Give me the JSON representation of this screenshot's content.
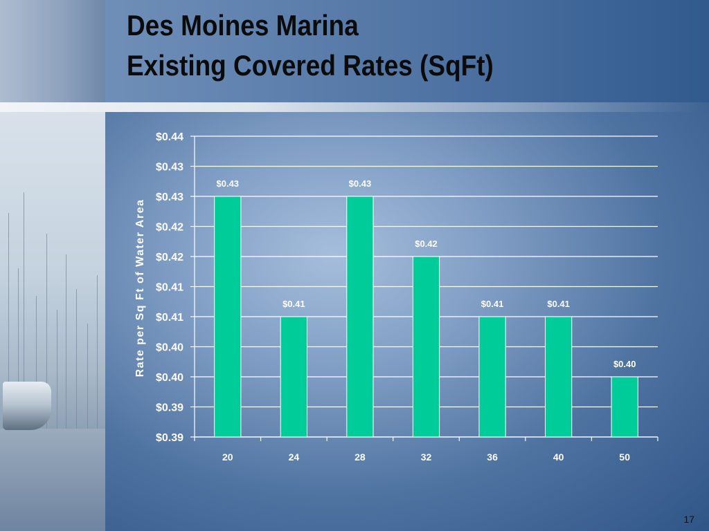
{
  "slide": {
    "title_line1": "Des Moines Marina",
    "title_line2": "Existing Covered Rates (SqFt)",
    "slide_number": "17"
  },
  "chart_data": {
    "type": "bar",
    "categories": [
      "20",
      "24",
      "28",
      "32",
      "36",
      "40",
      "50"
    ],
    "values": [
      0.43,
      0.41,
      0.43,
      0.42,
      0.41,
      0.41,
      0.4
    ],
    "data_labels": [
      "$0.43",
      "$0.41",
      "$0.43",
      "$0.42",
      "$0.41",
      "$0.41",
      "$0.40"
    ],
    "ylabel": "Rate per Sq Ft of Water Area",
    "xlabel": "",
    "ylim": [
      0.39,
      0.44
    ],
    "yticks": [
      0.39,
      0.395,
      0.4,
      0.405,
      0.41,
      0.415,
      0.42,
      0.425,
      0.43,
      0.435,
      0.44
    ],
    "ytick_labels": [
      "$0.39",
      "$0.39",
      "$0.40",
      "$0.40",
      "$0.41",
      "$0.41",
      "$0.42",
      "$0.42",
      "$0.43",
      "$0.43",
      "$0.44"
    ],
    "grid": true,
    "legend": "none",
    "colors": {
      "bar": "#00cc99",
      "bar_edge": "#ffffff",
      "gridline": "#ffffff",
      "text": "#ffffff"
    }
  }
}
